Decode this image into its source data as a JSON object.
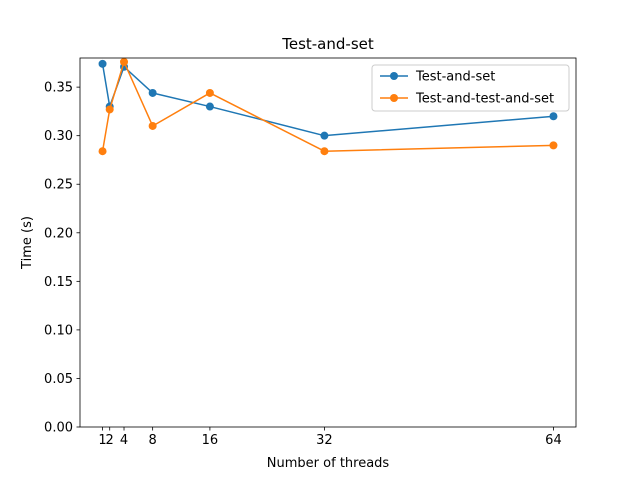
{
  "chart_data": {
    "type": "line",
    "title": "Test-and-set",
    "xlabel": "Number of threads",
    "ylabel": "Time (s)",
    "x_ticks": [
      1,
      2,
      4,
      8,
      16,
      32,
      64
    ],
    "x_tick_labels": [
      "1",
      "2",
      "4",
      "8",
      "16",
      "32",
      "64"
    ],
    "xlim": [
      -2.15,
      67.15
    ],
    "ylim": [
      0.0,
      0.38
    ],
    "y_ticks": [
      0.0,
      0.05,
      0.1,
      0.15,
      0.2,
      0.25,
      0.3,
      0.35
    ],
    "y_tick_labels": [
      "0.00",
      "0.05",
      "0.10",
      "0.15",
      "0.20",
      "0.25",
      "0.30",
      "0.35"
    ],
    "grid": false,
    "legend_position": "top-right",
    "series": [
      {
        "name": "Test-and-set",
        "color": "#1f77b4",
        "x": [
          1,
          2,
          4,
          8,
          16,
          32,
          64
        ],
        "values": [
          0.374,
          0.33,
          0.371,
          0.344,
          0.33,
          0.3,
          0.32
        ]
      },
      {
        "name": "Test-and-test-and-set",
        "color": "#ff7f0e",
        "x": [
          1,
          2,
          4,
          8,
          16,
          32,
          64
        ],
        "values": [
          0.284,
          0.327,
          0.376,
          0.31,
          0.344,
          0.284,
          0.29
        ]
      }
    ]
  }
}
